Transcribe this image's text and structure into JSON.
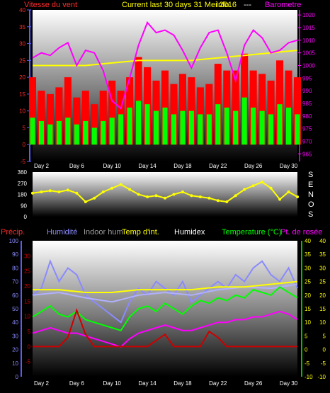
{
  "header": {
    "wind_label": "Vitesse du vent",
    "title": "Current last 30 days 31 Mei 2016",
    "title_overlap": "Info",
    "sep": "---",
    "baro_label": "Barometre"
  },
  "legend2": {
    "precip": "Précip.",
    "humidity": "Humidité",
    "indoor_hum": "Indoor hum",
    "temp_int": "Temp d'int.",
    "humidex": "Humidex",
    "temperature": "Temperature (°C)",
    "dewpoint": "Pt. de rosée"
  },
  "direction_letters": [
    "S",
    "E",
    "N",
    "O",
    "S"
  ],
  "colors": {
    "wind_axis": "#ff2b2b",
    "baro": "#ff00ff",
    "title": "#ffff00",
    "gust": "#ff0000",
    "wind": "#00ff00",
    "direction": "#ffff00",
    "precip": "#cc0000",
    "humidity": "#8a8aff",
    "indoor_hum": "#b0b0ff",
    "temp_int": "#ffff00",
    "humidex": "#ffffff",
    "temperature": "#00ff00",
    "dewpoint": "#ff00ff"
  },
  "chart_data": [
    {
      "type": "bar",
      "title": "Current last 30 days 31 Mei 2016",
      "x_ticks": [
        "Day 2",
        "Day 6",
        "Day 10",
        "Day 14",
        "Day 18",
        "Day 22",
        "Day 26",
        "Day 30"
      ],
      "y_left_label": "Vitesse du vent",
      "y_left_ticks": [
        -5,
        0,
        5,
        10,
        15,
        20,
        25,
        30,
        35,
        40
      ],
      "y_left_range": [
        -5,
        40
      ],
      "y_right_label": "Barometre",
      "y_right_ticks": [
        965,
        970,
        975,
        980,
        985,
        990,
        995,
        1000,
        1005,
        1010,
        1015,
        1020
      ],
      "y_right_range": [
        962,
        1022
      ],
      "x_range": [
        1,
        31
      ],
      "series": [
        {
          "name": "Vitesse du vent (rafale)",
          "x": [
            1,
            2,
            3,
            4,
            5,
            6,
            7,
            8,
            9,
            10,
            11,
            12,
            13,
            14,
            15,
            16,
            17,
            18,
            19,
            20,
            21,
            22,
            23,
            24,
            25,
            26,
            27,
            28,
            29,
            30,
            31
          ],
          "values": [
            20,
            16,
            15,
            17,
            20,
            14,
            16,
            12,
            16,
            19,
            16,
            20,
            26,
            23,
            19,
            22,
            18,
            21,
            20,
            17,
            18,
            24,
            22,
            22,
            27,
            22,
            21,
            19,
            25,
            22,
            20
          ]
        },
        {
          "name": "Vitesse du vent",
          "x": [
            1,
            2,
            3,
            4,
            5,
            6,
            7,
            8,
            9,
            10,
            11,
            12,
            13,
            14,
            15,
            16,
            17,
            18,
            19,
            20,
            21,
            22,
            23,
            24,
            25,
            26,
            27,
            28,
            29,
            30,
            31
          ],
          "values": [
            8,
            7,
            6,
            7,
            8,
            6,
            7,
            5,
            7,
            8,
            9,
            11,
            13,
            12,
            10,
            11,
            9,
            10,
            10,
            9,
            9,
            12,
            11,
            10,
            14,
            11,
            10,
            9,
            12,
            11,
            9
          ]
        },
        {
          "name": "Barometre",
          "x": [
            1,
            2,
            3,
            4,
            5,
            6,
            7,
            8,
            9,
            10,
            11,
            12,
            13,
            14,
            15,
            16,
            17,
            18,
            19,
            20,
            21,
            22,
            23,
            24,
            25,
            26,
            27,
            28,
            29,
            30,
            31
          ],
          "values": [
            1003,
            1005,
            1004,
            1007,
            1009,
            1000,
            1006,
            1005,
            998,
            986,
            983,
            995,
            1008,
            1017,
            1013,
            1014,
            1012,
            1006,
            999,
            1007,
            1013,
            1014,
            1005,
            994,
            1008,
            1014,
            1011,
            1005,
            1006,
            1009,
            1010
          ]
        },
        {
          "name": "Temperature (ligne)",
          "x": [
            1,
            4,
            7,
            10,
            13,
            16,
            19,
            22,
            25,
            28,
            31
          ],
          "values": [
            1000,
            1000,
            1000,
            1001,
            1002,
            1002,
            1002,
            1003,
            1004,
            1005,
            1006
          ]
        }
      ]
    },
    {
      "type": "line",
      "y_ticks": [
        0,
        90,
        180,
        270,
        360
      ],
      "y_range": [
        0,
        360
      ],
      "x_range": [
        1,
        31
      ],
      "series": [
        {
          "name": "Direction",
          "x": [
            1,
            2,
            3,
            4,
            5,
            6,
            7,
            8,
            9,
            10,
            11,
            12,
            13,
            14,
            15,
            16,
            17,
            18,
            19,
            20,
            21,
            22,
            23,
            24,
            25,
            26,
            27,
            28,
            29,
            30,
            31
          ],
          "values": [
            190,
            200,
            210,
            200,
            215,
            190,
            120,
            150,
            200,
            230,
            260,
            220,
            180,
            160,
            170,
            150,
            180,
            200,
            170,
            160,
            150,
            130,
            120,
            170,
            220,
            250,
            280,
            230,
            140,
            200,
            160
          ]
        }
      ]
    },
    {
      "type": "line",
      "x_ticks": [
        "Day 2",
        "Day 6",
        "Day 10",
        "Day 14",
        "Day 18",
        "Day 22",
        "Day 26",
        "Day 30"
      ],
      "x_range": [
        1,
        31
      ],
      "y_left_ticks": [
        0,
        10,
        20,
        30,
        40,
        50,
        60,
        70,
        80,
        90,
        100
      ],
      "y_left_range": [
        0,
        100
      ],
      "y_mid_ticks": [
        -5,
        0,
        5,
        10,
        15,
        20,
        25,
        30
      ],
      "y_mid_range": [
        -10,
        35
      ],
      "y_right_ticks": [
        -10,
        -5,
        0,
        5,
        10,
        15,
        20,
        25,
        30,
        35,
        40
      ],
      "y_right_range": [
        -10,
        40
      ],
      "series": [
        {
          "name": "Humidité",
          "x": [
            1,
            2,
            3,
            4,
            5,
            6,
            7,
            8,
            9,
            10,
            11,
            12,
            13,
            14,
            15,
            16,
            17,
            18,
            19,
            20,
            21,
            22,
            23,
            24,
            25,
            26,
            27,
            28,
            29,
            30,
            31
          ],
          "values": [
            60,
            65,
            85,
            70,
            80,
            75,
            60,
            55,
            50,
            45,
            40,
            55,
            65,
            60,
            70,
            65,
            60,
            70,
            55,
            60,
            65,
            70,
            65,
            75,
            70,
            80,
            85,
            75,
            70,
            80,
            65
          ]
        },
        {
          "name": "Indoor hum",
          "x": [
            1,
            4,
            7,
            10,
            13,
            16,
            19,
            22,
            25,
            28,
            31
          ],
          "values": [
            60,
            62,
            58,
            55,
            60,
            62,
            60,
            64,
            66,
            65,
            68
          ]
        },
        {
          "name": "Temp d'int.",
          "x": [
            1,
            4,
            7,
            10,
            13,
            16,
            19,
            22,
            25,
            28,
            31
          ],
          "values": [
            22,
            22,
            21,
            21,
            22,
            22,
            22,
            23,
            23,
            24,
            25
          ]
        },
        {
          "name": "Temperature (°C)",
          "x": [
            1,
            2,
            3,
            4,
            5,
            6,
            7,
            8,
            9,
            10,
            11,
            12,
            13,
            14,
            15,
            16,
            17,
            18,
            19,
            20,
            21,
            22,
            23,
            24,
            25,
            26,
            27,
            28,
            29,
            30,
            31
          ],
          "values": [
            12,
            14,
            16,
            13,
            12,
            14,
            11,
            10,
            9,
            8,
            7,
            12,
            15,
            16,
            14,
            17,
            15,
            13,
            16,
            18,
            17,
            19,
            18,
            20,
            19,
            22,
            21,
            20,
            23,
            21,
            19
          ]
        },
        {
          "name": "Pt. de rosée",
          "x": [
            1,
            2,
            3,
            4,
            5,
            6,
            7,
            8,
            9,
            10,
            11,
            12,
            13,
            14,
            15,
            16,
            17,
            18,
            19,
            20,
            21,
            22,
            23,
            24,
            25,
            26,
            27,
            28,
            29,
            30,
            31
          ],
          "values": [
            6,
            7,
            8,
            7,
            6,
            6,
            5,
            4,
            3,
            2,
            1,
            4,
            6,
            7,
            8,
            9,
            8,
            7,
            7,
            8,
            9,
            10,
            10,
            11,
            11,
            12,
            12,
            13,
            14,
            13,
            11
          ]
        },
        {
          "name": "Précip.",
          "x": [
            1,
            2,
            3,
            4,
            5,
            6,
            7,
            8,
            9,
            10,
            11,
            12,
            13,
            14,
            15,
            16,
            17,
            18,
            19,
            20,
            21,
            22,
            23,
            24,
            25,
            26,
            27,
            28,
            29,
            30,
            31
          ],
          "values": [
            0,
            0,
            0,
            0,
            3,
            12,
            4,
            0,
            0,
            0,
            0,
            0,
            0,
            0,
            2,
            4,
            0,
            0,
            0,
            0,
            5,
            3,
            0,
            0,
            0,
            0,
            0,
            0,
            0,
            0,
            0
          ]
        }
      ]
    }
  ]
}
